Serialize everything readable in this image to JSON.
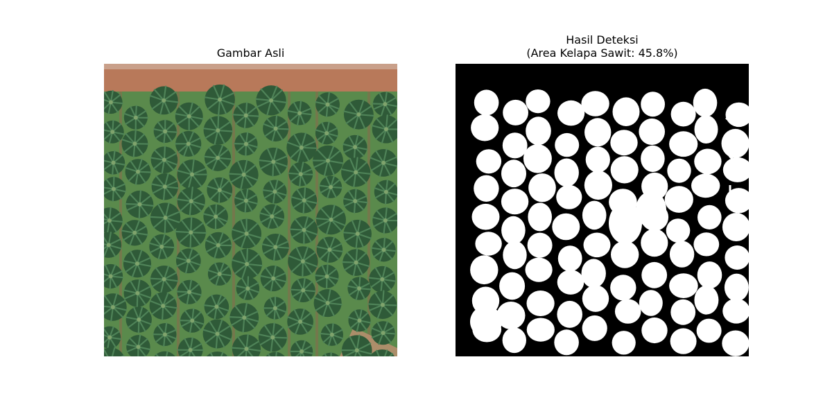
{
  "figure": {
    "left_title": "Gambar Asli",
    "right_title_line1": "Hasil Deteksi",
    "right_title_line2": "(Area Kelapa Sawit: 45.8%)",
    "area_percent": 45.8
  },
  "colors": {
    "background": "#ffffff",
    "soil": "#b8795a",
    "ground": "#5a8a4c",
    "palm_dark": "#2f5a38",
    "palm_light": "#4f8358",
    "mask_bg": "#000000",
    "mask_fg": "#ffffff"
  }
}
